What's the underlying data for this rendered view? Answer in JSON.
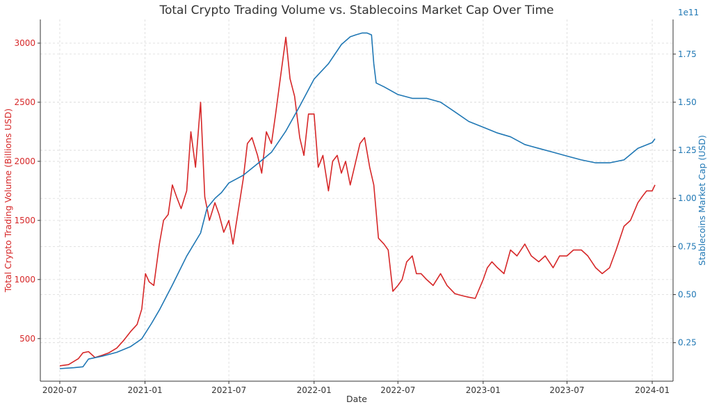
{
  "chart_data": {
    "type": "line",
    "title": "Total Crypto Trading Volume vs. Stablecoins Market Cap Over Time",
    "xlabel": "Date",
    "x_ticks": [
      "2020-07",
      "2021-01",
      "2021-07",
      "2022-01",
      "2022-07",
      "2023-01",
      "2023-07",
      "2024-01"
    ],
    "x_range": [
      "2020-05-20",
      "2024-02-15"
    ],
    "left_axis": {
      "label": "Total Crypto Trading Volume (Billions USD)",
      "ticks": [
        "500",
        "1000",
        "1500",
        "2000",
        "2500",
        "3000"
      ],
      "tick_values": [
        500,
        1000,
        1500,
        2000,
        2500,
        3000
      ],
      "range": [
        140,
        3200
      ]
    },
    "right_axis": {
      "label": "Stablecoins Market Cap (USD)",
      "multiplier": "1e11",
      "ticks": [
        "0.25",
        "0.50",
        "0.75",
        "1.00",
        "1.25",
        "1.50",
        "1.75"
      ],
      "tick_values": [
        0.25,
        0.5,
        0.75,
        1.0,
        1.25,
        1.5,
        1.75
      ],
      "range": [
        0.05,
        1.93
      ]
    },
    "series": [
      {
        "name": "Total Crypto Trading Volume (Billions USD)",
        "axis": "left",
        "color": "#d62728",
        "x": [
          "2020-07-01",
          "2020-07-20",
          "2020-08-10",
          "2020-08-20",
          "2020-09-01",
          "2020-09-15",
          "2020-10-01",
          "2020-10-15",
          "2020-11-01",
          "2020-11-15",
          "2020-12-01",
          "2020-12-15",
          "2020-12-25",
          "2021-01-02",
          "2021-01-10",
          "2021-01-20",
          "2021-02-01",
          "2021-02-10",
          "2021-02-20",
          "2021-03-01",
          "2021-03-10",
          "2021-03-20",
          "2021-04-01",
          "2021-04-10",
          "2021-04-20",
          "2021-05-01",
          "2021-05-10",
          "2021-05-20",
          "2021-06-01",
          "2021-06-10",
          "2021-06-20",
          "2021-07-01",
          "2021-07-10",
          "2021-07-20",
          "2021-08-01",
          "2021-08-10",
          "2021-08-20",
          "2021-09-01",
          "2021-09-10",
          "2021-09-20",
          "2021-10-01",
          "2021-10-10",
          "2021-10-20",
          "2021-11-01",
          "2021-11-10",
          "2021-11-20",
          "2021-12-01",
          "2021-12-10",
          "2021-12-20",
          "2022-01-01",
          "2022-01-10",
          "2022-01-20",
          "2022-02-01",
          "2022-02-10",
          "2022-02-20",
          "2022-03-01",
          "2022-03-10",
          "2022-03-20",
          "2022-04-01",
          "2022-04-10",
          "2022-04-20",
          "2022-05-01",
          "2022-05-10",
          "2022-05-20",
          "2022-06-01",
          "2022-06-10",
          "2022-06-20",
          "2022-07-01",
          "2022-07-10",
          "2022-07-20",
          "2022-08-01",
          "2022-08-10",
          "2022-08-20",
          "2022-09-01",
          "2022-09-15",
          "2022-10-01",
          "2022-10-15",
          "2022-11-01",
          "2022-11-10",
          "2022-11-20",
          "2022-12-01",
          "2022-12-15",
          "2023-01-01",
          "2023-01-10",
          "2023-01-20",
          "2023-02-01",
          "2023-02-15",
          "2023-03-01",
          "2023-03-15",
          "2023-04-01",
          "2023-04-15",
          "2023-05-01",
          "2023-05-15",
          "2023-06-01",
          "2023-06-15",
          "2023-07-01",
          "2023-07-15",
          "2023-08-01",
          "2023-08-15",
          "2023-09-01",
          "2023-09-15",
          "2023-10-01",
          "2023-10-15",
          "2023-11-01",
          "2023-11-15",
          "2023-12-01",
          "2023-12-10",
          "2023-12-20",
          "2024-01-01",
          "2024-01-07"
        ],
        "values": [
          270,
          280,
          330,
          380,
          390,
          340,
          360,
          380,
          420,
          480,
          560,
          620,
          750,
          1050,
          980,
          950,
          1300,
          1500,
          1550,
          1800,
          1700,
          1600,
          1750,
          2250,
          1950,
          2500,
          1700,
          1500,
          1650,
          1550,
          1400,
          1500,
          1300,
          1550,
          1850,
          2150,
          2200,
          2050,
          1900,
          2250,
          2150,
          2400,
          2700,
          3050,
          2700,
          2550,
          2200,
          2050,
          2400,
          2400,
          1950,
          2050,
          1750,
          2000,
          2050,
          1900,
          2000,
          1800,
          2000,
          2150,
          2200,
          1950,
          1800,
          1350,
          1300,
          1250,
          900,
          950,
          1000,
          1150,
          1200,
          1050,
          1050,
          1000,
          950,
          1050,
          950,
          880,
          870,
          860,
          850,
          840,
          1000,
          1100,
          1150,
          1100,
          1050,
          1250,
          1200,
          1300,
          1200,
          1150,
          1200,
          1100,
          1200,
          1200,
          1250,
          1250,
          1200,
          1100,
          1050,
          1100,
          1250,
          1450,
          1500,
          1650,
          1700,
          1750,
          1750,
          1800
        ]
      },
      {
        "name": "Stablecoins Market Cap (USD)",
        "axis": "right",
        "color": "#1f77b4",
        "x": [
          "2020-07-01",
          "2020-08-01",
          "2020-08-20",
          "2020-09-01",
          "2020-10-01",
          "2020-11-01",
          "2020-12-01",
          "2020-12-25",
          "2021-01-15",
          "2021-02-01",
          "2021-03-01",
          "2021-04-01",
          "2021-05-01",
          "2021-05-15",
          "2021-06-01",
          "2021-06-15",
          "2021-07-01",
          "2021-08-01",
          "2021-09-01",
          "2021-10-01",
          "2021-11-01",
          "2021-12-01",
          "2022-01-01",
          "2022-02-01",
          "2022-03-01",
          "2022-03-20",
          "2022-04-01",
          "2022-04-15",
          "2022-04-25",
          "2022-05-05",
          "2022-05-10",
          "2022-05-15",
          "2022-06-01",
          "2022-07-01",
          "2022-08-01",
          "2022-09-01",
          "2022-10-01",
          "2022-11-01",
          "2022-12-01",
          "2023-01-01",
          "2023-02-01",
          "2023-03-01",
          "2023-04-01",
          "2023-05-01",
          "2023-06-01",
          "2023-07-01",
          "2023-08-01",
          "2023-09-01",
          "2023-10-01",
          "2023-11-01",
          "2023-12-01",
          "2024-01-01",
          "2024-01-07"
        ],
        "values": [
          0.115,
          0.12,
          0.125,
          0.165,
          0.18,
          0.2,
          0.23,
          0.27,
          0.35,
          0.42,
          0.55,
          0.7,
          0.82,
          0.95,
          1.0,
          1.03,
          1.08,
          1.12,
          1.18,
          1.24,
          1.35,
          1.48,
          1.62,
          1.7,
          1.8,
          1.84,
          1.85,
          1.86,
          1.86,
          1.85,
          1.7,
          1.6,
          1.58,
          1.54,
          1.52,
          1.52,
          1.5,
          1.45,
          1.4,
          1.37,
          1.34,
          1.32,
          1.28,
          1.26,
          1.24,
          1.22,
          1.2,
          1.185,
          1.185,
          1.2,
          1.26,
          1.29,
          1.31
        ]
      }
    ],
    "legend": "none",
    "grid": true
  }
}
